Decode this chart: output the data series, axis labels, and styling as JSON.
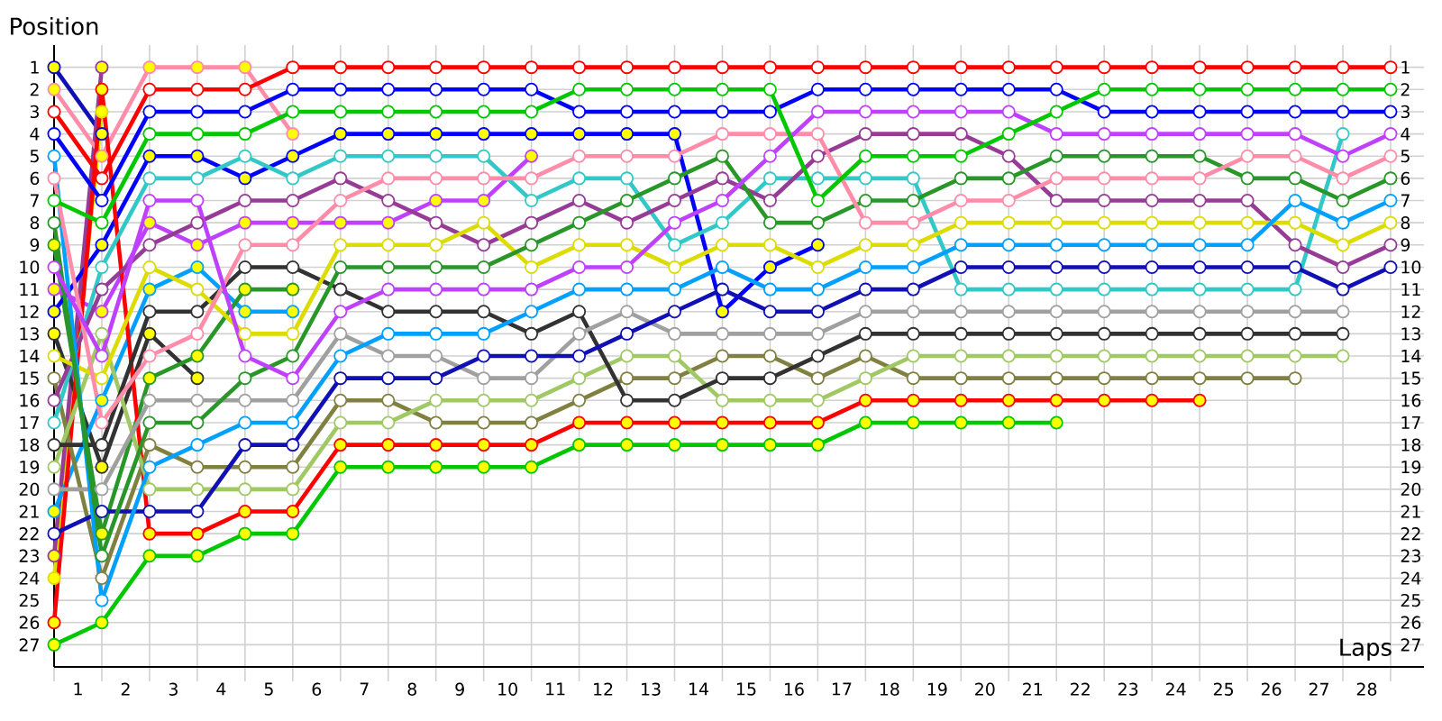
{
  "chart_data": {
    "type": "line",
    "xlabel": "Laps",
    "ylabel": "Position",
    "marker": "circle",
    "grid": true,
    "x": [
      0,
      1,
      2,
      3,
      4,
      5,
      6,
      7,
      8,
      9,
      10,
      11,
      12,
      13,
      14,
      15,
      16,
      17,
      18,
      19,
      20,
      21,
      22,
      23,
      24,
      25,
      26,
      27,
      28
    ],
    "xlim": [
      0,
      28.7
    ],
    "xticks": [
      {
        "value": 0.5,
        "label": "1"
      },
      {
        "value": 1.5,
        "label": "2"
      },
      {
        "value": 2.5,
        "label": "3"
      },
      {
        "value": 3.5,
        "label": "4"
      },
      {
        "value": 4.5,
        "label": "5"
      },
      {
        "value": 5.5,
        "label": "6"
      },
      {
        "value": 6.5,
        "label": "7"
      },
      {
        "value": 7.5,
        "label": "8"
      },
      {
        "value": 8.5,
        "label": "9"
      },
      {
        "value": 9.5,
        "label": "10"
      },
      {
        "value": 10.5,
        "label": "11"
      },
      {
        "value": 11.5,
        "label": "12"
      },
      {
        "value": 12.5,
        "label": "13"
      },
      {
        "value": 13.5,
        "label": "14"
      },
      {
        "value": 14.5,
        "label": "15"
      },
      {
        "value": 15.5,
        "label": "16"
      },
      {
        "value": 16.5,
        "label": "17"
      },
      {
        "value": 17.5,
        "label": "18"
      },
      {
        "value": 18.5,
        "label": "19"
      },
      {
        "value": 19.5,
        "label": "20"
      },
      {
        "value": 20.5,
        "label": "21"
      },
      {
        "value": 21.5,
        "label": "22"
      },
      {
        "value": 22.5,
        "label": "23"
      },
      {
        "value": 23.5,
        "label": "24"
      },
      {
        "value": 24.5,
        "label": "25"
      },
      {
        "value": 25.5,
        "label": "26"
      },
      {
        "value": 26.5,
        "label": "27"
      },
      {
        "value": 27.5,
        "label": "28"
      }
    ],
    "ylim": [
      28,
      0
    ],
    "yticks": [
      1,
      2,
      3,
      4,
      5,
      6,
      7,
      8,
      9,
      10,
      11,
      12,
      13,
      14,
      15,
      16,
      17,
      18,
      19,
      20,
      21,
      22,
      23,
      24,
      25,
      26,
      27
    ],
    "y2lim": [
      28,
      0
    ],
    "y2ticks": [
      1,
      2,
      3,
      4,
      5,
      6,
      7,
      8,
      9,
      10,
      11,
      12,
      13,
      14,
      15,
      16,
      17,
      18,
      19,
      20,
      21,
      22,
      23,
      24,
      25,
      26,
      27
    ],
    "series": [
      {
        "color": "#1010b4",
        "values": [
          1,
          4,
          null,
          null,
          null,
          null,
          null,
          null,
          null,
          null,
          null,
          null,
          null,
          null,
          null,
          null,
          null,
          null,
          null,
          null,
          null,
          null,
          null,
          null,
          null,
          null,
          null,
          null,
          null
        ],
        "colors": [
          "#ffff00",
          "#ffff00",
          null,
          null,
          null,
          null,
          null,
          null,
          null,
          null,
          null,
          null,
          null,
          null,
          null,
          null,
          null,
          null,
          null,
          null,
          null,
          null,
          null,
          null,
          null,
          null,
          null,
          null,
          null
        ]
      },
      {
        "color": "#dcdc00",
        "values": [
          24,
          3,
          null,
          null,
          null,
          null,
          null,
          null,
          null,
          null,
          null,
          null,
          null,
          null,
          null,
          null,
          null,
          null,
          null,
          null,
          null,
          null,
          null,
          null,
          null,
          null,
          null,
          null,
          null
        ],
        "colors": [
          "#ffff00",
          "#ffff00",
          null,
          null,
          null,
          null,
          null,
          null,
          null,
          null,
          null,
          null,
          null,
          null,
          null,
          null,
          null,
          null,
          null,
          null,
          null,
          null,
          null,
          null,
          null,
          null,
          null,
          null,
          null
        ]
      },
      {
        "color": "#963c96",
        "values": [
          23,
          1,
          null,
          null,
          null,
          null,
          null,
          null,
          null,
          null,
          null,
          null,
          null,
          null,
          null,
          null,
          null,
          null,
          null,
          null,
          null,
          null,
          null,
          null,
          null,
          null,
          null,
          null,
          null
        ],
        "colors": [
          "#ffff00",
          "#ffff00",
          null,
          null,
          null,
          null,
          null,
          null,
          null,
          null,
          null,
          null,
          null,
          null,
          null,
          null,
          null,
          null,
          null,
          null,
          null,
          null,
          null,
          null,
          null,
          null,
          null,
          null,
          null
        ]
      },
      {
        "color": "#323232",
        "values": [
          13,
          19,
          13,
          15,
          null,
          null,
          null,
          null,
          null,
          null,
          null,
          null,
          null,
          null,
          null,
          null,
          null,
          null,
          null,
          null,
          null,
          null,
          null,
          null,
          null,
          null,
          null,
          null,
          null
        ],
        "colors": [
          "#ffff00",
          "#ffff00",
          "#ffff00",
          "#ffff00",
          null,
          null,
          null,
          null,
          null,
          null,
          null,
          null,
          null,
          null,
          null,
          null,
          null,
          null,
          null,
          null,
          null,
          null,
          null,
          null,
          null,
          null,
          null,
          null,
          null
        ]
      },
      {
        "color": "#00a0ff",
        "values": [
          21,
          16,
          11,
          10,
          12,
          12,
          null,
          null,
          null,
          null,
          null,
          null,
          null,
          null,
          null,
          null,
          null,
          null,
          null,
          null,
          null,
          null,
          null,
          null,
          null,
          null,
          null,
          null,
          null
        ],
        "colors": [
          "#ffff00",
          "#ffff00",
          "#ffff00",
          "#ffff00",
          "#ffff00",
          "#ffff00",
          null,
          null,
          null,
          null,
          null,
          null,
          null,
          null,
          null,
          null,
          null,
          null,
          null,
          null,
          null,
          null,
          null,
          null,
          null,
          null,
          null,
          null,
          null
        ]
      },
      {
        "color": "#289628",
        "values": [
          9,
          22,
          15,
          14,
          11,
          11,
          null,
          null,
          null,
          null,
          null,
          null,
          null,
          null,
          null,
          null,
          null,
          null,
          null,
          null,
          null,
          null,
          null,
          null,
          null,
          null,
          null,
          null,
          null
        ],
        "colors": [
          "#ffff00",
          "#ffff00",
          "#ffff00",
          "#ffff00",
          "#ffff00",
          "#ffff00",
          null,
          null,
          null,
          null,
          null,
          null,
          null,
          null,
          null,
          null,
          null,
          null,
          null,
          null,
          null,
          null,
          null,
          null,
          null,
          null,
          null,
          null,
          null
        ]
      },
      {
        "color": "#ff8ca8",
        "values": [
          2,
          5,
          1,
          1,
          1,
          4,
          null,
          null,
          null,
          null,
          null,
          null,
          null,
          null,
          null,
          null,
          null,
          null,
          null,
          null,
          null,
          null,
          null,
          null,
          null,
          null,
          null,
          null,
          null
        ],
        "colors": [
          "#ffff00",
          "#ffff00",
          "#ffff00",
          "#ffff00",
          "#ffff00",
          "#ffff00",
          null,
          null,
          null,
          null,
          null,
          null,
          null,
          null,
          null,
          null,
          null,
          null,
          null,
          null,
          null,
          null,
          null,
          null,
          null,
          null,
          null,
          null,
          null
        ]
      },
      {
        "color": "#c040ff",
        "values": [
          11,
          12,
          8,
          9,
          8,
          8,
          8,
          8,
          7,
          7,
          5,
          null,
          null,
          null,
          null,
          null,
          null,
          null,
          null,
          null,
          null,
          null,
          null,
          null,
          null,
          null,
          null,
          null,
          null
        ],
        "colors": [
          "#ffff00",
          "#ffff00",
          "#ffff00",
          "#ffff00",
          "#ffff00",
          "#ffff00",
          "#ffff00",
          "#ffff00",
          "#ffff00",
          "#ffff00",
          "#ffff00",
          null,
          null,
          null,
          null,
          null,
          null,
          null,
          null,
          null,
          null,
          null,
          null,
          null,
          null,
          null,
          null,
          null,
          null
        ]
      },
      {
        "color": "#0000ff",
        "values": [
          12,
          9,
          5,
          5,
          6,
          5,
          4,
          4,
          4,
          4,
          4,
          4,
          4,
          4,
          12,
          10,
          9,
          null,
          null,
          null,
          null,
          null,
          null,
          null,
          null,
          null,
          null,
          null,
          null
        ],
        "colors": [
          "#ffff00",
          "#ffff00",
          "#ffff00",
          "#ffff00",
          "#ffff00",
          "#ffff00",
          "#ffff00",
          "#ffff00",
          "#ffff00",
          "#ffff00",
          "#ffff00",
          "#ffff00",
          "#ffff00",
          "#ffff00",
          "#ffff00",
          "#ffff00",
          "#ffff00",
          null,
          null,
          null,
          null,
          null,
          null,
          null,
          null,
          null,
          null,
          null,
          null
        ]
      },
      {
        "color": "#00c800",
        "values": [
          27,
          26,
          23,
          23,
          22,
          22,
          19,
          19,
          19,
          19,
          19,
          18,
          18,
          18,
          18,
          18,
          18,
          17,
          17,
          17,
          17,
          17,
          null,
          null,
          null,
          null,
          null,
          null,
          null
        ],
        "colors": [
          "#ffff00",
          "#ffff00",
          "#ffff00",
          "#ffff00",
          "#ffff00",
          "#ffff00",
          "#ffff00",
          "#ffff00",
          "#ffff00",
          "#ffff00",
          "#ffff00",
          "#ffff00",
          "#ffff00",
          "#ffff00",
          "#ffff00",
          "#ffff00",
          "#ffff00",
          "#ffff00",
          "#ffff00",
          "#ffff00",
          "#ffff00",
          "#ffff00",
          null,
          null,
          null,
          null,
          null,
          null,
          null
        ]
      },
      {
        "color": "#ff0000",
        "values": [
          26,
          2,
          22,
          22,
          21,
          21,
          18,
          18,
          18,
          18,
          18,
          17,
          17,
          17,
          17,
          17,
          17,
          16,
          16,
          16,
          16,
          16,
          16,
          16,
          16,
          null,
          null,
          null,
          null
        ],
        "colors": [
          "#ffff00",
          "#ffff00",
          "#ffff00",
          "#ffff00",
          "#ffff00",
          "#ffff00",
          "#ffff00",
          "#ffff00",
          "#ffff00",
          "#ffff00",
          "#ffff00",
          "#ffff00",
          "#ffff00",
          "#ffff00",
          "#ffff00",
          "#ffff00",
          "#ffff00",
          "#ffff00",
          "#ffff00",
          "#ffff00",
          "#ffff00",
          "#ffff00",
          "#ffff00",
          "#ffff00",
          "#ffff00",
          null,
          null,
          null,
          null
        ]
      },
      {
        "color": "#808040",
        "values": [
          15,
          24,
          18,
          19,
          19,
          19,
          16,
          16,
          17,
          17,
          17,
          16,
          15,
          15,
          14,
          14,
          15,
          14,
          15,
          15,
          15,
          15,
          15,
          15,
          15,
          15,
          15,
          null,
          null
        ]
      },
      {
        "color": "#a0c864",
        "values": [
          19,
          13,
          20,
          20,
          20,
          20,
          17,
          17,
          16,
          16,
          16,
          15,
          14,
          14,
          16,
          16,
          16,
          15,
          14,
          14,
          14,
          14,
          14,
          14,
          14,
          14,
          14,
          14,
          null
        ]
      },
      {
        "color": "#323232",
        "values": [
          18,
          18,
          12,
          12,
          10,
          10,
          11,
          12,
          12,
          12,
          13,
          12,
          16,
          16,
          15,
          15,
          14,
          13,
          13,
          13,
          13,
          13,
          13,
          13,
          13,
          13,
          13,
          13,
          null
        ]
      },
      {
        "color": "#a0a0a0",
        "values": [
          20,
          20,
          16,
          16,
          16,
          16,
          13,
          14,
          14,
          15,
          15,
          13,
          12,
          13,
          13,
          13,
          13,
          12,
          12,
          12,
          12,
          12,
          12,
          12,
          12,
          12,
          12,
          12,
          null
        ]
      },
      {
        "color": "#32c8c8",
        "values": [
          17,
          10,
          6,
          6,
          5,
          6,
          5,
          5,
          5,
          5,
          7,
          6,
          6,
          9,
          8,
          6,
          6,
          6,
          6,
          11,
          11,
          11,
          11,
          11,
          11,
          11,
          11,
          4,
          null
        ]
      },
      {
        "color": "#1010b4",
        "values": [
          22,
          21,
          21,
          21,
          18,
          18,
          15,
          15,
          15,
          14,
          14,
          14,
          13,
          12,
          11,
          12,
          12,
          11,
          11,
          10,
          10,
          10,
          10,
          10,
          10,
          10,
          10,
          11,
          10
        ]
      },
      {
        "color": "#963c96",
        "values": [
          16,
          11,
          9,
          8,
          7,
          7,
          6,
          7,
          8,
          9,
          8,
          7,
          8,
          7,
          6,
          7,
          5,
          4,
          4,
          4,
          5,
          7,
          7,
          7,
          7,
          7,
          9,
          10,
          9
        ]
      },
      {
        "color": "#dcdc00",
        "values": [
          14,
          15,
          10,
          11,
          13,
          13,
          9,
          9,
          9,
          8,
          10,
          9,
          9,
          10,
          9,
          9,
          10,
          9,
          9,
          8,
          8,
          8,
          8,
          8,
          8,
          8,
          8,
          9,
          8
        ]
      },
      {
        "color": "#00a0ff",
        "values": [
          5,
          25,
          19,
          18,
          17,
          17,
          14,
          13,
          13,
          13,
          12,
          11,
          11,
          11,
          10,
          11,
          11,
          10,
          10,
          9,
          9,
          9,
          9,
          9,
          9,
          9,
          7,
          8,
          7
        ]
      },
      {
        "color": "#289628",
        "values": [
          8,
          23,
          17,
          17,
          15,
          14,
          10,
          10,
          10,
          10,
          9,
          8,
          7,
          6,
          5,
          8,
          8,
          7,
          7,
          6,
          6,
          5,
          5,
          5,
          5,
          6,
          6,
          7,
          6
        ]
      },
      {
        "color": "#ff8ca8",
        "values": [
          6,
          17,
          14,
          13,
          9,
          9,
          7,
          6,
          6,
          6,
          6,
          5,
          5,
          5,
          4,
          4,
          4,
          8,
          8,
          7,
          7,
          6,
          6,
          6,
          6,
          5,
          5,
          6,
          5
        ]
      },
      {
        "color": "#c040ff",
        "values": [
          10,
          14,
          7,
          7,
          14,
          15,
          12,
          11,
          11,
          11,
          11,
          10,
          10,
          8,
          7,
          5,
          3,
          3,
          3,
          3,
          3,
          4,
          4,
          4,
          4,
          4,
          4,
          5,
          4
        ]
      },
      {
        "color": "#0000ff",
        "values": [
          4,
          7,
          3,
          3,
          3,
          2,
          2,
          2,
          2,
          2,
          2,
          3,
          3,
          3,
          3,
          3,
          2,
          2,
          2,
          2,
          2,
          2,
          3,
          3,
          3,
          3,
          3,
          3,
          3
        ]
      },
      {
        "color": "#00c800",
        "values": [
          7,
          8,
          4,
          4,
          4,
          3,
          3,
          3,
          3,
          3,
          3,
          2,
          2,
          2,
          2,
          2,
          7,
          5,
          5,
          5,
          4,
          3,
          2,
          2,
          2,
          2,
          2,
          2,
          2
        ]
      },
      {
        "color": "#ff0000",
        "values": [
          3,
          6,
          2,
          2,
          2,
          1,
          1,
          1,
          1,
          1,
          1,
          1,
          1,
          1,
          1,
          1,
          1,
          1,
          1,
          1,
          1,
          1,
          1,
          1,
          1,
          1,
          1,
          1,
          1
        ]
      }
    ]
  }
}
